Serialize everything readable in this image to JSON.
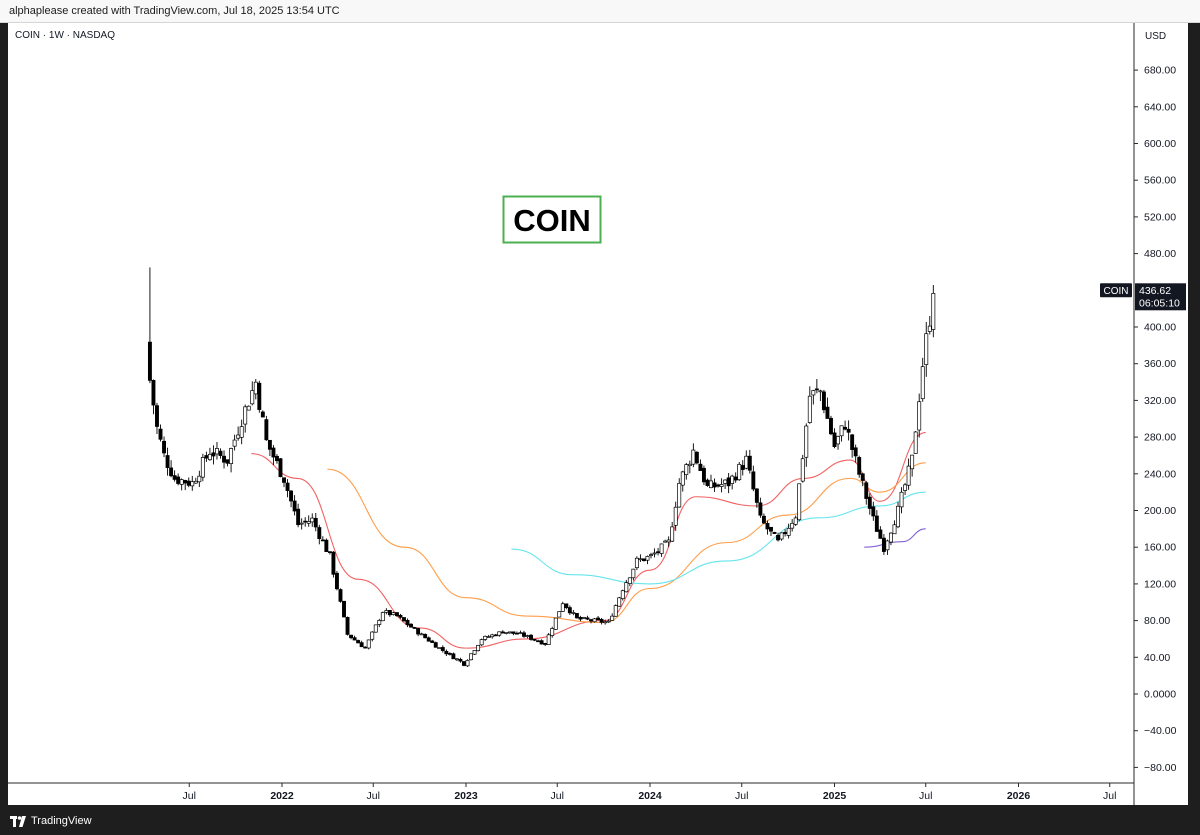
{
  "header": {
    "credit": "alphaplease created with TradingView.com, Jul 18, 2025 13:54 UTC"
  },
  "footer": {
    "brand": "TradingView",
    "logo": "tradingview-logo"
  },
  "chart_data": {
    "type": "candlestick",
    "symbol_label": "COIN · 1W · NASDAQ",
    "annotation": "COIN",
    "currency": "USD",
    "ylim": [
      -95,
      715
    ],
    "y_ticks": [
      "680.00",
      "640.00",
      "600.00",
      "560.00",
      "520.00",
      "480.00",
      "440.00",
      "400.00",
      "360.00",
      "320.00",
      "280.00",
      "240.00",
      "200.00",
      "160.00",
      "120.00",
      "80.00",
      "40.00",
      "0.0000",
      "−40.00",
      "−80.00"
    ],
    "x_ticks": [
      "Jul",
      "2022",
      "Jul",
      "2023",
      "Jul",
      "2024",
      "Jul",
      "2025",
      "Jul",
      "2026",
      "Jul"
    ],
    "last_price": {
      "symbol": "COIN",
      "price": "436.62",
      "countdown": "06:05:10"
    },
    "colors": {
      "candle_up": "#ffffff",
      "candle_down": "#000000",
      "wick": "#000000",
      "annotation_border": "#4caf50"
    },
    "price_path_keypoints": [
      {
        "date": "2021-04-14",
        "close": 342
      },
      {
        "date": "2021-04-28",
        "close": 290
      },
      {
        "date": "2021-05-12",
        "close": 260
      },
      {
        "date": "2021-06-02",
        "close": 235
      },
      {
        "date": "2021-07-07",
        "close": 230
      },
      {
        "date": "2021-08-11",
        "close": 265
      },
      {
        "date": "2021-09-15",
        "close": 255
      },
      {
        "date": "2021-10-13",
        "close": 300
      },
      {
        "date": "2021-11-10",
        "close": 340
      },
      {
        "date": "2021-12-01",
        "close": 275
      },
      {
        "date": "2022-01-05",
        "close": 235
      },
      {
        "date": "2022-02-02",
        "close": 185
      },
      {
        "date": "2022-03-02",
        "close": 190
      },
      {
        "date": "2022-04-06",
        "close": 150
      },
      {
        "date": "2022-05-11",
        "close": 65
      },
      {
        "date": "2022-06-15",
        "close": 50
      },
      {
        "date": "2022-07-20",
        "close": 90
      },
      {
        "date": "2022-08-17",
        "close": 85
      },
      {
        "date": "2022-09-21",
        "close": 70
      },
      {
        "date": "2022-11-09",
        "close": 50
      },
      {
        "date": "2022-12-28",
        "close": 33
      },
      {
        "date": "2023-02-01",
        "close": 60
      },
      {
        "date": "2023-03-15",
        "close": 68
      },
      {
        "date": "2023-04-19",
        "close": 65
      },
      {
        "date": "2023-06-07",
        "close": 55
      },
      {
        "date": "2023-07-12",
        "close": 100
      },
      {
        "date": "2023-08-09",
        "close": 82
      },
      {
        "date": "2023-10-11",
        "close": 78
      },
      {
        "date": "2023-11-08",
        "close": 115
      },
      {
        "date": "2023-12-06",
        "close": 145
      },
      {
        "date": "2024-01-03",
        "close": 150
      },
      {
        "date": "2024-02-07",
        "close": 165
      },
      {
        "date": "2024-02-28",
        "close": 230
      },
      {
        "date": "2024-03-27",
        "close": 265
      },
      {
        "date": "2024-04-24",
        "close": 225
      },
      {
        "date": "2024-06-05",
        "close": 230
      },
      {
        "date": "2024-07-10",
        "close": 255
      },
      {
        "date": "2024-08-07",
        "close": 190
      },
      {
        "date": "2024-09-11",
        "close": 165
      },
      {
        "date": "2024-10-16",
        "close": 195
      },
      {
        "date": "2024-11-13",
        "close": 325
      },
      {
        "date": "2024-12-04",
        "close": 330
      },
      {
        "date": "2025-01-01",
        "close": 270
      },
      {
        "date": "2025-01-22",
        "close": 295
      },
      {
        "date": "2025-02-19",
        "close": 240
      },
      {
        "date": "2025-03-19",
        "close": 190
      },
      {
        "date": "2025-04-09",
        "close": 160
      },
      {
        "date": "2025-05-07",
        "close": 200
      },
      {
        "date": "2025-06-04",
        "close": 255
      },
      {
        "date": "2025-06-25",
        "close": 360
      },
      {
        "date": "2025-07-16",
        "close": 436.62
      }
    ],
    "moving_averages": [
      {
        "color": "#f05a5a",
        "points": [
          {
            "date": "2021-11-01",
            "value": 262
          },
          {
            "date": "2022-02-01",
            "value": 235
          },
          {
            "date": "2022-06-01",
            "value": 125
          },
          {
            "date": "2022-10-01",
            "value": 72
          },
          {
            "date": "2023-01-01",
            "value": 50
          },
          {
            "date": "2023-05-01",
            "value": 60
          },
          {
            "date": "2023-10-01",
            "value": 80
          },
          {
            "date": "2024-01-01",
            "value": 135
          },
          {
            "date": "2024-04-01",
            "value": 215
          },
          {
            "date": "2024-08-01",
            "value": 205
          },
          {
            "date": "2024-11-01",
            "value": 235
          },
          {
            "date": "2025-02-01",
            "value": 255
          },
          {
            "date": "2025-04-01",
            "value": 210
          },
          {
            "date": "2025-07-01",
            "value": 285
          }
        ]
      },
      {
        "color": "#ff9840",
        "points": [
          {
            "date": "2022-04-01",
            "value": 245
          },
          {
            "date": "2022-09-01",
            "value": 160
          },
          {
            "date": "2023-01-01",
            "value": 105
          },
          {
            "date": "2023-05-01",
            "value": 85
          },
          {
            "date": "2023-10-01",
            "value": 78
          },
          {
            "date": "2024-01-01",
            "value": 115
          },
          {
            "date": "2024-06-01",
            "value": 165
          },
          {
            "date": "2024-10-01",
            "value": 195
          },
          {
            "date": "2025-02-01",
            "value": 235
          },
          {
            "date": "2025-04-01",
            "value": 220
          },
          {
            "date": "2025-07-01",
            "value": 252
          }
        ]
      },
      {
        "color": "#5ee4ec",
        "points": [
          {
            "date": "2023-04-01",
            "value": 158
          },
          {
            "date": "2023-08-01",
            "value": 130
          },
          {
            "date": "2024-01-01",
            "value": 120
          },
          {
            "date": "2024-06-01",
            "value": 145
          },
          {
            "date": "2024-12-01",
            "value": 192
          },
          {
            "date": "2025-04-01",
            "value": 205
          },
          {
            "date": "2025-07-01",
            "value": 220
          }
        ]
      },
      {
        "color": "#7b59d4",
        "points": [
          {
            "date": "2025-03-01",
            "value": 160
          },
          {
            "date": "2025-05-15",
            "value": 166
          },
          {
            "date": "2025-07-01",
            "value": 180
          }
        ]
      }
    ]
  }
}
